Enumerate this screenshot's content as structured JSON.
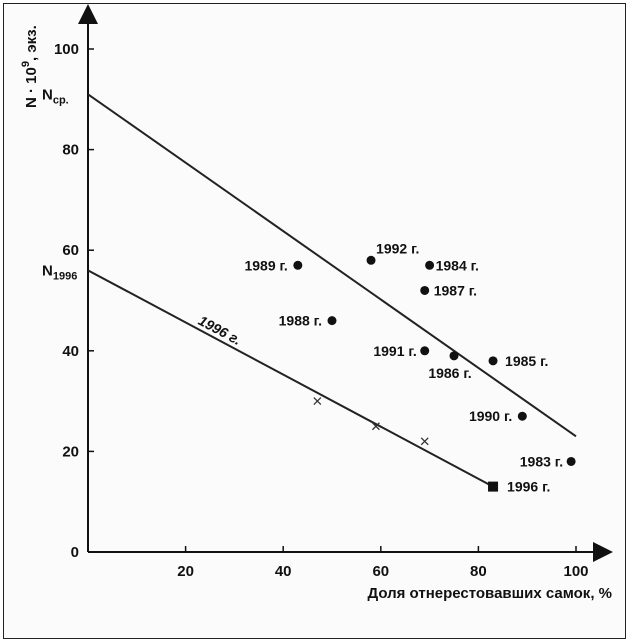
{
  "chart_data": {
    "type": "scatter",
    "title": "",
    "xlabel": "Доля отнерестовавших самок, %",
    "ylabel_main": "N · 10",
    "ylabel_sup": "9",
    "ylabel_tail": ", экз.",
    "xlim": [
      0,
      105
    ],
    "ylim": [
      0,
      107
    ],
    "xticks": [
      20,
      40,
      60,
      80,
      100
    ],
    "yticks": [
      0,
      20,
      40,
      60,
      80,
      100
    ],
    "y_special_labels": [
      {
        "text_main": "N",
        "text_sub": "ср.",
        "value": 91
      },
      {
        "text_main": "N",
        "text_sub": "1996",
        "value": 56
      }
    ],
    "series": [
      {
        "marker": "circle",
        "points": [
          {
            "x": 43,
            "y": 57,
            "label": "1989 г."
          },
          {
            "x": 58,
            "y": 58,
            "label": "1992 г."
          },
          {
            "x": 70,
            "y": 57,
            "label": "1984 г."
          },
          {
            "x": 69,
            "y": 52,
            "label": "1987 г."
          },
          {
            "x": 50,
            "y": 46,
            "label": "1988 г."
          },
          {
            "x": 69,
            "y": 40,
            "label": "1991 г."
          },
          {
            "x": 75,
            "y": 39,
            "label": "1986 г."
          },
          {
            "x": 83,
            "y": 38,
            "label": "1985 г."
          },
          {
            "x": 89,
            "y": 27,
            "label": "1990 г."
          },
          {
            "x": 99,
            "y": 18,
            "label": "1983 г."
          }
        ]
      },
      {
        "marker": "cross",
        "points": [
          {
            "x": 47,
            "y": 30
          },
          {
            "x": 59,
            "y": 25
          },
          {
            "x": 69,
            "y": 22
          }
        ]
      },
      {
        "marker": "square",
        "points": [
          {
            "x": 83,
            "y": 13,
            "label": "1996 г."
          }
        ]
      }
    ],
    "lines": [
      {
        "x1": 0,
        "y1": 91,
        "x2": 100,
        "y2": 23,
        "label": ""
      },
      {
        "x1": 0,
        "y1": 56,
        "x2": 83,
        "y2": 13,
        "label": "1996 г."
      }
    ]
  }
}
